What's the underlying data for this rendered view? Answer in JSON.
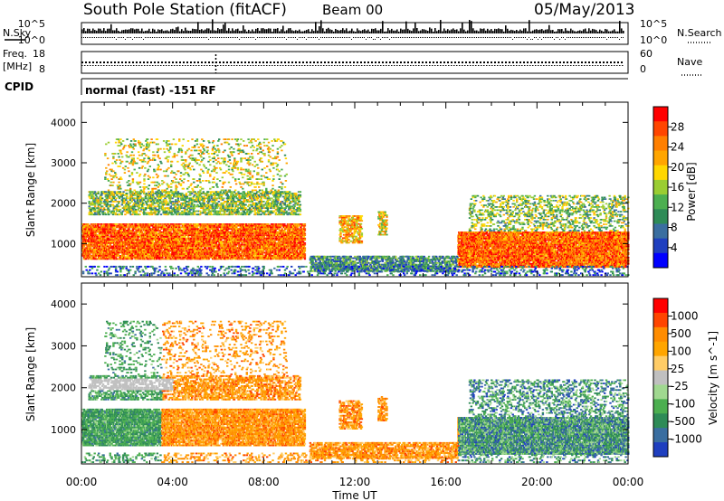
{
  "header": {
    "title": "South Pole Station (fitACF)",
    "beam": "Beam 00",
    "date": "05/May/2013"
  },
  "status_panels": {
    "nsky_label": "N.Sky",
    "nsearch_label": "N.Search",
    "noise_ticks": [
      "10^5",
      "10^0"
    ],
    "freq_label": "Freq.",
    "freq_unit": "[MHz]",
    "freq_ticks": [
      "18",
      "8"
    ],
    "nave_label": "Nave",
    "nave_ticks": [
      "60",
      "0"
    ],
    "cpid_label": "CPID",
    "cpid_text": "normal (fast) -151 RF"
  },
  "colors": {
    "power_scale": [
      "#0000ff",
      "#1f3fbf",
      "#3a6ea0",
      "#2e8b57",
      "#4caf50",
      "#9acd32",
      "#ffd700",
      "#ffa500",
      "#ff7f00",
      "#ff4500",
      "#ff0000"
    ],
    "velocity_scale": [
      "#ff0000",
      "#ff4500",
      "#ff8c00",
      "#ffa500",
      "#ffcc66",
      "#c0c0c0",
      "#a0d890",
      "#4caf50",
      "#2e8b57",
      "#3a6ea0",
      "#1f3fbf"
    ]
  },
  "chart_data": [
    {
      "type": "heatmap",
      "name": "power",
      "ylabel": "Slant Range [km]",
      "ylim": [
        180,
        4500
      ],
      "yticks": [
        "1000",
        "2000",
        "3000",
        "4000"
      ],
      "xlim_hours": [
        0,
        24
      ],
      "colorbar_label": "Power [dB]",
      "colorbar_ticks": [
        "4",
        "8",
        "12",
        "16",
        "20",
        "24",
        "28"
      ],
      "colorbar_range": [
        0,
        32
      ]
    },
    {
      "type": "heatmap",
      "name": "velocity",
      "ylabel": "Slant Range [km]",
      "ylim": [
        180,
        4500
      ],
      "yticks": [
        "1000",
        "2000",
        "3000",
        "4000"
      ],
      "xlim_hours": [
        0,
        24
      ],
      "xticks": [
        "00:00",
        "04:00",
        "08:00",
        "12:00",
        "16:00",
        "20:00",
        "00:00"
      ],
      "xlabel": "Time UT",
      "colorbar_label": "Velocity [m s^-1]",
      "colorbar_ticks": [
        "1000",
        "500",
        "100",
        "25",
        "-25",
        "-100",
        "-500",
        "-1000"
      ]
    }
  ]
}
